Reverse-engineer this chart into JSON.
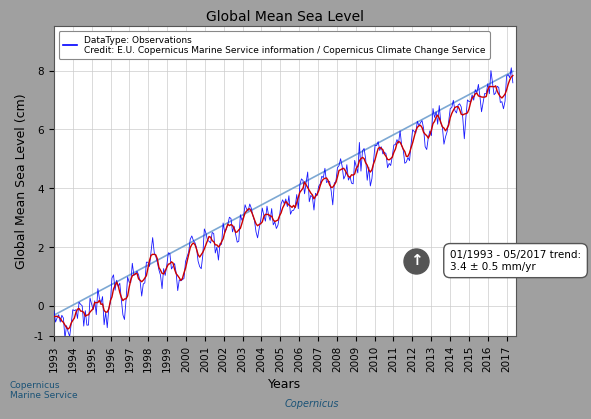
{
  "title": "Global Mean Sea Level",
  "xlabel": "Years",
  "ylabel": "Global Mean Sea Level (cm)",
  "legend_line1": "DataType: Observations",
  "legend_line2": "Credit: E.U. Copernicus Marine Service information / Copernicus Climate Change Service",
  "trend_text_line1": "01/1993 - 05/2017 trend:",
  "trend_text_line2": "3.4 ± 0.5 mm/yr",
  "year_start": 1993.0,
  "year_end": 2017.5,
  "ylim": [
    -1.0,
    9.5
  ],
  "yticks": [
    -1,
    0,
    2,
    4,
    6,
    8
  ],
  "trend_rate_mm_per_yr": 3.4,
  "obs_color": "#0000ff",
  "smooth_color": "#cc0000",
  "trend_color": "#6699cc",
  "background_color": "#ffffff",
  "outer_background": "#a0a0a0",
  "grid_color": "#cccccc",
  "title_fontsize": 10,
  "label_fontsize": 9,
  "tick_fontsize": 7.5
}
